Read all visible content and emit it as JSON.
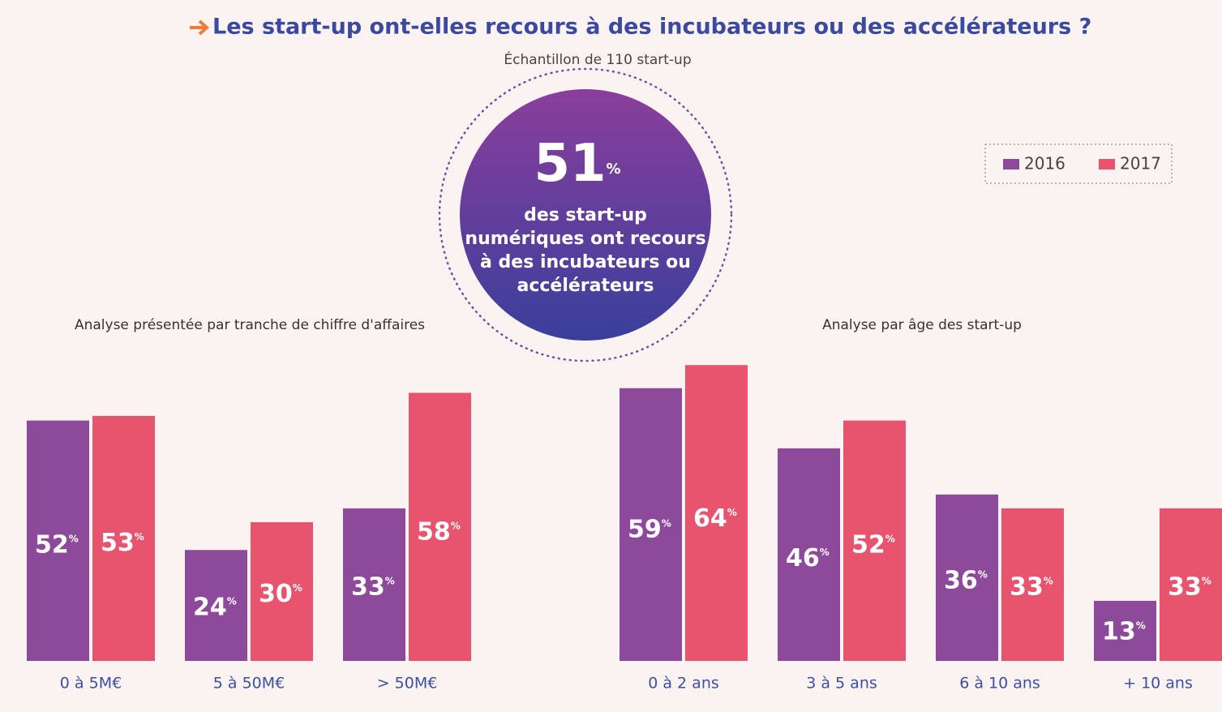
{
  "title": "Les start-up ont-elles recours à des incubateurs ou des accélérateurs ?",
  "subtitle": "Échantillon de 110 start-up",
  "highlight": {
    "value": 51,
    "unit": "%",
    "lines": [
      "des start-up",
      "numériques ont recours",
      "à des incubateurs ou",
      "accélérateurs"
    ]
  },
  "chart_data": [
    {
      "type": "bar",
      "title": "Analyse présentée par tranche de chiffre d'affaires",
      "value_unit": "%",
      "categories": [
        "0 à 5M€",
        "5 à 50M€",
        "> 50M€"
      ],
      "series": [
        {
          "name": "2016",
          "color": "#8e4a9a",
          "values": [
            52,
            24,
            33
          ]
        },
        {
          "name": "2017",
          "color": "#e8546e",
          "values": [
            53,
            30,
            58
          ]
        }
      ]
    },
    {
      "type": "bar",
      "title": "Analyse par âge des start-up",
      "value_unit": "%",
      "categories": [
        "0 à 2 ans",
        "3 à 5 ans",
        "6 à 10 ans",
        "+ 10 ans"
      ],
      "series": [
        {
          "name": "2016",
          "color": "#8e4a9a",
          "values": [
            59,
            46,
            36,
            13
          ]
        },
        {
          "name": "2017",
          "color": "#e8546e",
          "values": [
            64,
            52,
            33,
            33
          ]
        }
      ]
    }
  ]
}
